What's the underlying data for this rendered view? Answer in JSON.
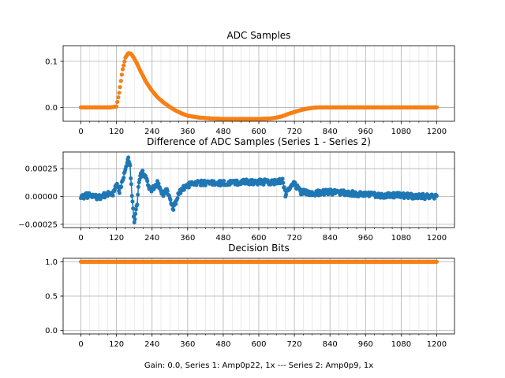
{
  "colors": {
    "series1": "#1f77b4",
    "series2": "#ff7f0e",
    "grid": "#b0b0b0",
    "axis": "#000000"
  },
  "chart_data": [
    {
      "type": "scatter",
      "title": "ADC Samples",
      "xlabel": "",
      "ylabel": "",
      "xlim": [
        -60,
        1260
      ],
      "ylim": [
        -0.03,
        0.134
      ],
      "xticks": [
        0,
        120,
        240,
        360,
        480,
        600,
        720,
        840,
        960,
        1080,
        1200
      ],
      "xtick_labels": [
        "0",
        "120",
        "240",
        "360",
        "480",
        "600",
        "720",
        "840",
        "960",
        "1080",
        "1200"
      ],
      "yticks": [
        0.0,
        0.1
      ],
      "ytick_labels": [
        "0.0",
        "0.1"
      ],
      "grid": true,
      "series": [
        {
          "name": "Series 1",
          "color": "#1f77b4",
          "markers": true,
          "x": [
            0,
            100,
            120,
            130,
            140,
            150,
            160,
            170,
            180,
            190,
            200,
            220,
            240,
            260,
            280,
            300,
            320,
            340,
            360,
            400,
            440,
            480,
            520,
            560,
            600,
            640,
            660,
            680,
            700,
            720,
            740,
            760,
            780,
            800,
            840,
            900,
            960,
            1020,
            1080,
            1140,
            1200
          ],
          "y": [
            0.0,
            0.0,
            0.002,
            0.035,
            0.08,
            0.108,
            0.118,
            0.116,
            0.106,
            0.094,
            0.08,
            0.055,
            0.036,
            0.021,
            0.01,
            0.001,
            -0.007,
            -0.013,
            -0.018,
            -0.022,
            -0.024,
            -0.025,
            -0.025,
            -0.025,
            -0.025,
            -0.024,
            -0.022,
            -0.019,
            -0.014,
            -0.01,
            -0.006,
            -0.003,
            -0.001,
            0.0,
            0.0,
            0.0,
            0.0,
            0.0,
            0.0,
            0.0,
            0.0
          ]
        },
        {
          "name": "Series 2",
          "color": "#ff7f0e",
          "markers": true,
          "x": [
            0,
            100,
            120,
            130,
            140,
            150,
            160,
            170,
            180,
            190,
            200,
            220,
            240,
            260,
            280,
            300,
            320,
            340,
            360,
            400,
            440,
            480,
            520,
            560,
            600,
            640,
            660,
            680,
            700,
            720,
            740,
            760,
            780,
            800,
            840,
            900,
            960,
            1020,
            1080,
            1140,
            1200
          ],
          "y": [
            0.0,
            0.0,
            0.002,
            0.035,
            0.08,
            0.108,
            0.118,
            0.116,
            0.106,
            0.094,
            0.08,
            0.055,
            0.036,
            0.021,
            0.01,
            0.001,
            -0.007,
            -0.013,
            -0.018,
            -0.022,
            -0.024,
            -0.025,
            -0.025,
            -0.025,
            -0.025,
            -0.024,
            -0.022,
            -0.019,
            -0.014,
            -0.01,
            -0.006,
            -0.003,
            -0.001,
            0.0,
            0.0,
            0.0,
            0.0,
            0.0,
            0.0,
            0.0,
            0.0
          ]
        }
      ]
    },
    {
      "type": "scatter",
      "title": "Difference of ADC Samples (Series 1 - Series 2)",
      "xlabel": "",
      "ylabel": "",
      "xlim": [
        -60,
        1260
      ],
      "ylim": [
        -0.00028,
        0.0004
      ],
      "xticks": [
        0,
        120,
        240,
        360,
        480,
        600,
        720,
        840,
        960,
        1080,
        1200
      ],
      "xtick_labels": [
        "0",
        "120",
        "240",
        "360",
        "480",
        "600",
        "720",
        "840",
        "960",
        "1080",
        "1200"
      ],
      "yticks": [
        -0.00025,
        0.0,
        0.00025
      ],
      "ytick_labels": [
        "−0.00025",
        "0.00000",
        "0.00025"
      ],
      "grid": true,
      "series": [
        {
          "name": "Series 1 - Series 2",
          "color": "#1f77b4",
          "markers": true,
          "line": true,
          "x": [
            0,
            30,
            60,
            90,
            110,
            120,
            130,
            140,
            150,
            160,
            165,
            170,
            175,
            180,
            185,
            190,
            195,
            200,
            210,
            220,
            230,
            240,
            250,
            260,
            270,
            280,
            290,
            300,
            310,
            320,
            330,
            340,
            360,
            400,
            450,
            500,
            550,
            600,
            650,
            680,
            690,
            700,
            710,
            720,
            740,
            780,
            840,
            900,
            960,
            1020,
            1080,
            1140,
            1200
          ],
          "y": [
            0.0,
            1e-05,
            -1e-05,
            2e-05,
            3e-05,
            0.0001,
            5e-05,
            0.00015,
            0.00025,
            0.00035,
            0.0003,
            0.0001,
            -0.0001,
            -0.00022,
            -0.00015,
            -5e-05,
            0.0001,
            0.00018,
            0.00022,
            0.00015,
            8e-05,
            5e-05,
            0.0001,
            0.00012,
            5e-05,
            2e-05,
            6e-05,
            -2e-05,
            -0.00012,
            -5e-05,
            3e-05,
            6e-05,
            0.0001,
            0.00012,
            0.00012,
            0.00012,
            0.00013,
            0.00013,
            0.00013,
            0.00014,
            2e-05,
            5e-05,
            0.0001,
            0.00012,
            4e-05,
            3e-05,
            4e-05,
            3e-05,
            2e-05,
            1e-05,
            1e-05,
            0.0,
            0.0
          ]
        }
      ]
    },
    {
      "type": "scatter",
      "title": "Decision Bits",
      "xlabel": "Gain: 0.0, Series 1: Amp0p22, 1x --- Series 2: Amp0p9, 1x",
      "ylabel": "",
      "xlim": [
        -60,
        1260
      ],
      "ylim": [
        -0.05,
        1.05
      ],
      "xticks": [
        0,
        120,
        240,
        360,
        480,
        600,
        720,
        840,
        960,
        1080,
        1200
      ],
      "xtick_labels": [
        "0",
        "120",
        "240",
        "360",
        "480",
        "600",
        "720",
        "840",
        "960",
        "1080",
        "1200"
      ],
      "yticks": [
        0.0,
        0.5,
        1.0
      ],
      "ytick_labels": [
        "0.0",
        "0.5",
        "1.0"
      ],
      "grid": true,
      "series": [
        {
          "name": "Series 1",
          "color": "#1f77b4",
          "markers": true,
          "x": [
            0,
            1200
          ],
          "y": [
            1.0,
            1.0
          ]
        },
        {
          "name": "Series 2",
          "color": "#ff7f0e",
          "markers": true,
          "x": [
            0,
            1200
          ],
          "y": [
            1.0,
            1.0
          ]
        }
      ]
    }
  ]
}
